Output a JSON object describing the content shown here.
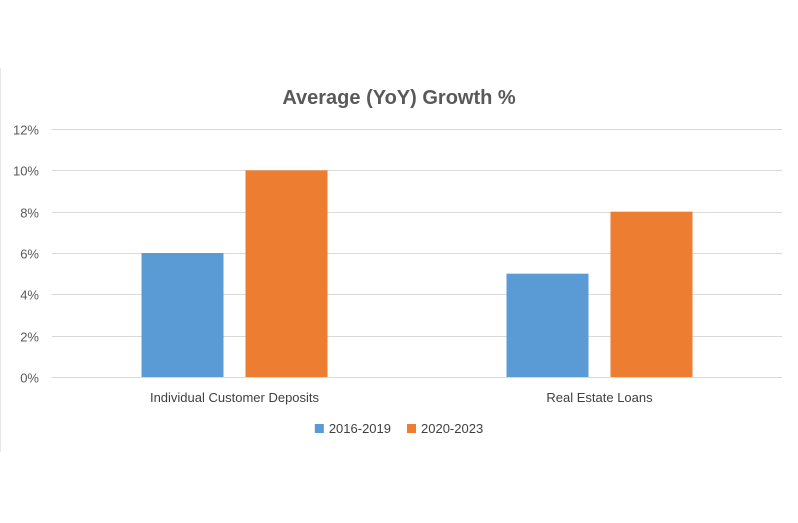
{
  "chart_data": {
    "type": "bar",
    "title": "Average (YoY) Growth %",
    "categories": [
      "Individual Customer Deposits",
      "Real Estate Loans"
    ],
    "series": [
      {
        "name": "2016-2019",
        "values": [
          6,
          5
        ],
        "color": "#5b9bd5"
      },
      {
        "name": "2020-2023",
        "values": [
          10,
          8
        ],
        "color": "#ed7d31"
      }
    ],
    "ylim": [
      0,
      12
    ],
    "yticks": [
      0,
      2,
      4,
      6,
      8,
      10,
      12
    ],
    "ytick_suffix": "%",
    "grid": true,
    "legend_position": "bottom"
  }
}
